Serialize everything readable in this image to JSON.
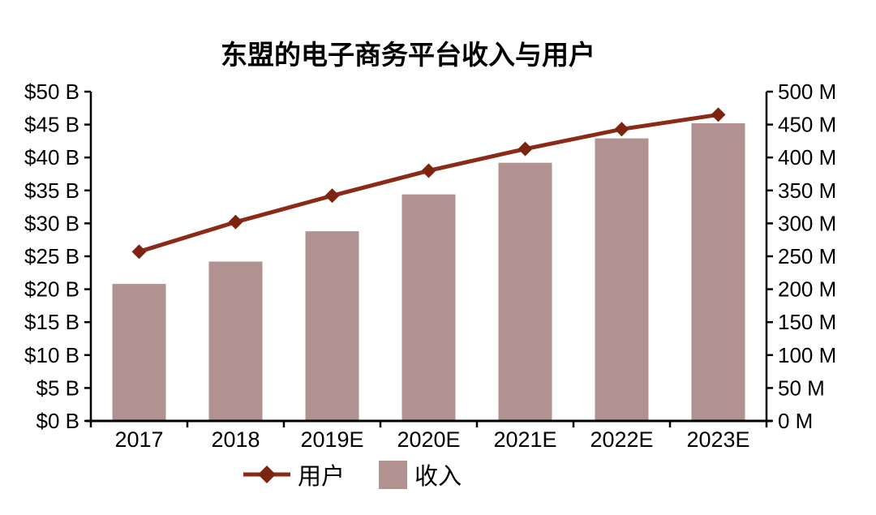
{
  "title": "东盟的电子商务平台收入与用户",
  "colors": {
    "bar": "#b29290",
    "line": "#8b2a17",
    "marker": "#7d2410",
    "axis": "#000000",
    "text": "#000000",
    "background": "#ffffff"
  },
  "legend": {
    "items": [
      {
        "label": "用户",
        "type": "line"
      },
      {
        "label": "收入",
        "type": "bar"
      }
    ]
  },
  "chart_data": {
    "type": "bar+line combo",
    "title": "东盟的电子商务平台收入与用户",
    "categories": [
      "2017",
      "2018",
      "2019E",
      "2020E",
      "2021E",
      "2022E",
      "2023E"
    ],
    "series": [
      {
        "name": "收入",
        "type": "bar",
        "axis": "left",
        "unit": "USD billions",
        "values": [
          20.8,
          24.2,
          28.8,
          34.4,
          39.2,
          42.9,
          45.2
        ]
      },
      {
        "name": "用户",
        "type": "line",
        "axis": "right",
        "unit": "millions of users",
        "values": [
          257,
          302,
          342,
          380,
          413,
          443,
          465
        ]
      }
    ],
    "left_axis": {
      "min": 0,
      "max": 50,
      "step": 5,
      "tick_labels": [
        "$0 B",
        "$5 B",
        "$10 B",
        "$15 B",
        "$20 B",
        "$25 B",
        "$30 B",
        "$35 B",
        "$40 B",
        "$45 B",
        "$50 B"
      ]
    },
    "right_axis": {
      "min": 0,
      "max": 500,
      "step": 50,
      "tick_labels": [
        "0 M",
        "50 M",
        "100 M",
        "150 M",
        "200 M",
        "250 M",
        "300 M",
        "350 M",
        "400 M",
        "450 M",
        "500 M"
      ]
    },
    "grid": false,
    "legend_position": "bottom"
  }
}
